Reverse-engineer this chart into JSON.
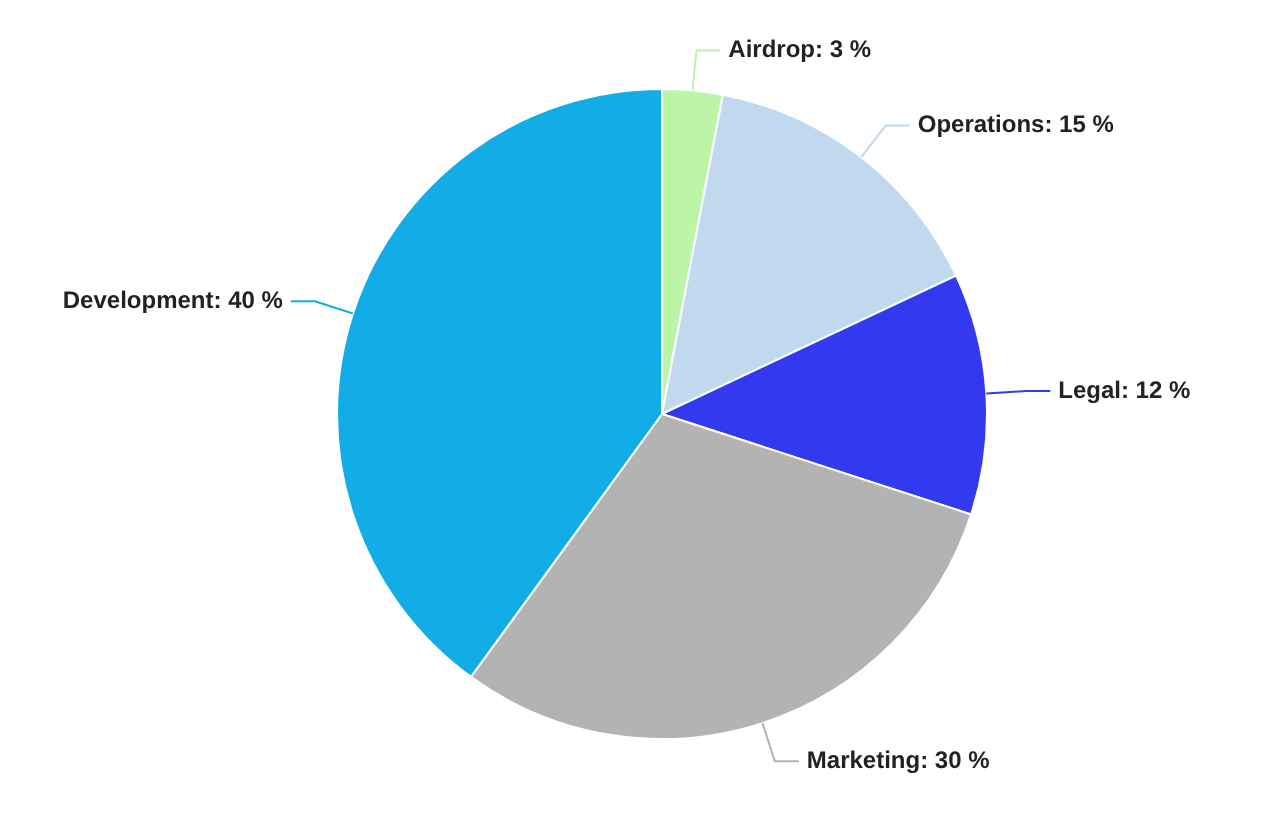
{
  "chart_data": {
    "type": "pie",
    "categories": [
      "Airdrop",
      "Operations",
      "Legal",
      "Marketing",
      "Development"
    ],
    "values": [
      3,
      15,
      12,
      30,
      40
    ],
    "colors": [
      "#bdf5a8",
      "#c0d9ee",
      "#3339ee",
      "#b3b3b3",
      "#12ade6"
    ],
    "value_labels": [
      "3 %",
      "15 %",
      "12 %",
      "30 %",
      "40 %"
    ],
    "legend": false
  }
}
